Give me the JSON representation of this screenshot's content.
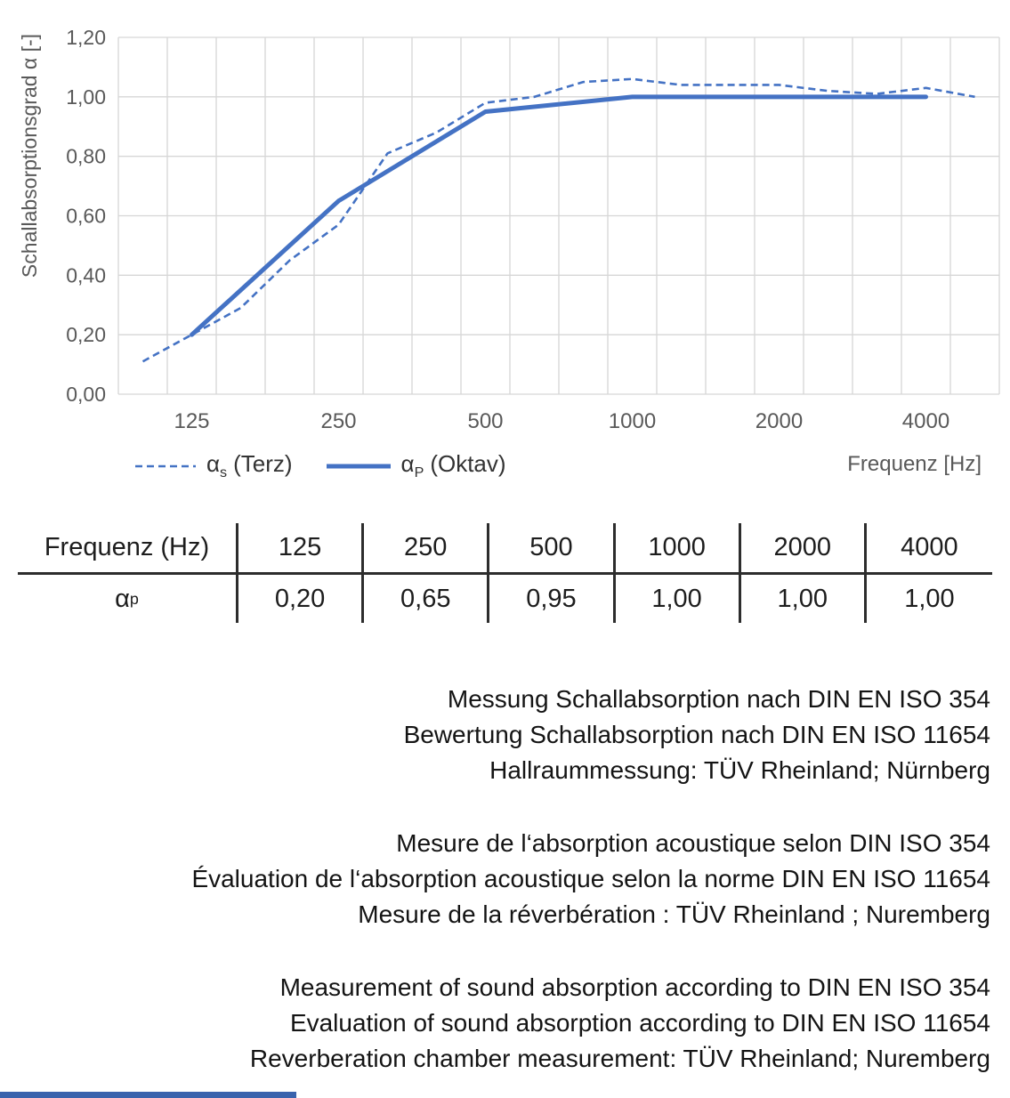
{
  "chart": {
    "y_axis_title": "Schallabsorptionsgrad α [-]",
    "x_axis_title": "Frequenz [Hz]",
    "y_ticks": [
      "1,20",
      "1,00",
      "0,80",
      "0,60",
      "0,40",
      "0,20",
      "0,00"
    ],
    "x_ticks": [
      "125",
      "250",
      "500",
      "1000",
      "2000",
      "4000"
    ],
    "legend": {
      "terz": {
        "alpha": "α",
        "sub": "s",
        "rest": "(Terz)"
      },
      "oktav": {
        "alpha": "α",
        "sub": "P",
        "rest": "(Oktav)"
      }
    },
    "line_color": "#4472C4",
    "grid_color": "#d6d6d6",
    "tick_color": "#595959"
  },
  "chart_data": {
    "type": "line",
    "title": "",
    "xlabel": "Frequenz [Hz]",
    "ylabel": "Schallabsorptionsgrad α [-]",
    "x_scale": "logarithmic (third-octave band categories)",
    "categories": [
      100,
      125,
      160,
      200,
      250,
      315,
      400,
      500,
      630,
      800,
      1000,
      1250,
      1600,
      2000,
      2500,
      3150,
      4000,
      5000
    ],
    "series": [
      {
        "name": "αs (Terz)",
        "style": "dashed",
        "values": [
          0.11,
          0.2,
          0.29,
          0.45,
          0.57,
          0.81,
          0.88,
          0.98,
          1.0,
          1.05,
          1.06,
          1.04,
          1.04,
          1.04,
          1.02,
          1.01,
          1.03,
          1.0
        ]
      },
      {
        "name": "αP (Oktav)",
        "style": "solid",
        "x": [
          125,
          250,
          500,
          1000,
          2000,
          4000
        ],
        "values": [
          0.2,
          0.65,
          0.95,
          1.0,
          1.0,
          1.0
        ]
      }
    ],
    "ylim": [
      0,
      1.2
    ],
    "y_tick_step": 0.2,
    "grid": true,
    "legend_position": "bottom-left"
  },
  "table": {
    "header": [
      "Frequenz (Hz)",
      "125",
      "250",
      "500",
      "1000",
      "2000",
      "4000"
    ],
    "row_label": {
      "alpha": "α",
      "sub": "p"
    },
    "values": [
      "0,20",
      "0,65",
      "0,95",
      "1,00",
      "1,00",
      "1,00"
    ]
  },
  "notes": {
    "german": [
      "Messung Schallabsorption nach DIN EN ISO 354",
      "Bewertung Schallabsorption nach DIN EN ISO 11654",
      "Hallraummessung: TÜV Rheinland; Nürnberg"
    ],
    "french": [
      "Mesure de l‘absorption acoustique selon DIN ISO 354",
      "Évaluation de l‘absorption acoustique selon la norme DIN EN ISO 11654",
      "Mesure de la réverbération : TÜV Rheinland ; Nuremberg"
    ],
    "english": [
      "Measurement of sound absorption according to DIN EN ISO 354",
      "Evaluation of sound absorption according to DIN EN ISO 11654",
      "Reverberation chamber measurement: TÜV Rheinland; Nuremberg"
    ]
  },
  "footer": {
    "bar_color": "#3A63AD"
  }
}
